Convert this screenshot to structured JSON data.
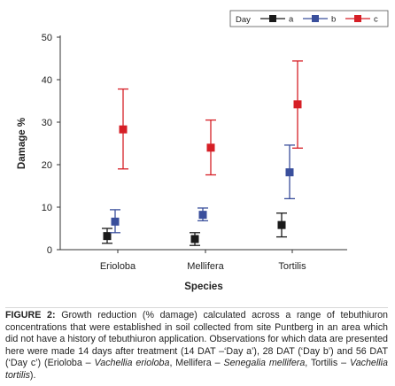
{
  "chart_data": {
    "type": "scatter",
    "title": "",
    "xlabel": "Species",
    "ylabel": "Damage %",
    "categories": [
      "Erioloba",
      "Mellifera",
      "Tortilis"
    ],
    "ylim": [
      0,
      50
    ],
    "yticks": [
      0,
      10,
      20,
      30,
      40,
      50
    ],
    "grid": false,
    "legend_title": "Day",
    "legend_position": "top-right",
    "series": [
      {
        "name": "a",
        "color": "#1a1a1a",
        "marker": "square",
        "values": [
          3.2,
          2.5,
          5.8
        ],
        "lower": [
          1.5,
          1.0,
          3.0
        ],
        "upper": [
          5.0,
          4.0,
          8.6
        ]
      },
      {
        "name": "b",
        "color": "#3a4f9c",
        "marker": "square",
        "values": [
          6.6,
          8.2,
          18.2
        ],
        "lower": [
          4.0,
          6.8,
          12.0
        ],
        "upper": [
          9.4,
          9.8,
          24.6
        ]
      },
      {
        "name": "c",
        "color": "#d61f26",
        "marker": "square",
        "values": [
          28.3,
          24.0,
          34.2
        ],
        "lower": [
          19.0,
          17.6,
          23.9
        ],
        "upper": [
          37.8,
          30.5,
          44.4
        ]
      }
    ]
  },
  "caption": {
    "label": "FIGURE 2:",
    "text_1": "Growth reduction (% damage) calculated across a range of tebuthiuron concentrations that were established in soil collected from site Puntberg in an area which did not have a history of tebuthiuron application. Observations for which data are presented here were made 14 days after treatment (14 DAT –‘Day a’), 28 DAT (‘Day b’) and 56 DAT (‘Day c’) (Erioloba –",
    "species_1": "Vachellia erioloba",
    "text_2": ", Mellifera –",
    "species_2": "Senegalia mellifera",
    "text_3": ", Tortilis –",
    "species_3": "Vachellia tortilis",
    "text_4": ")."
  }
}
